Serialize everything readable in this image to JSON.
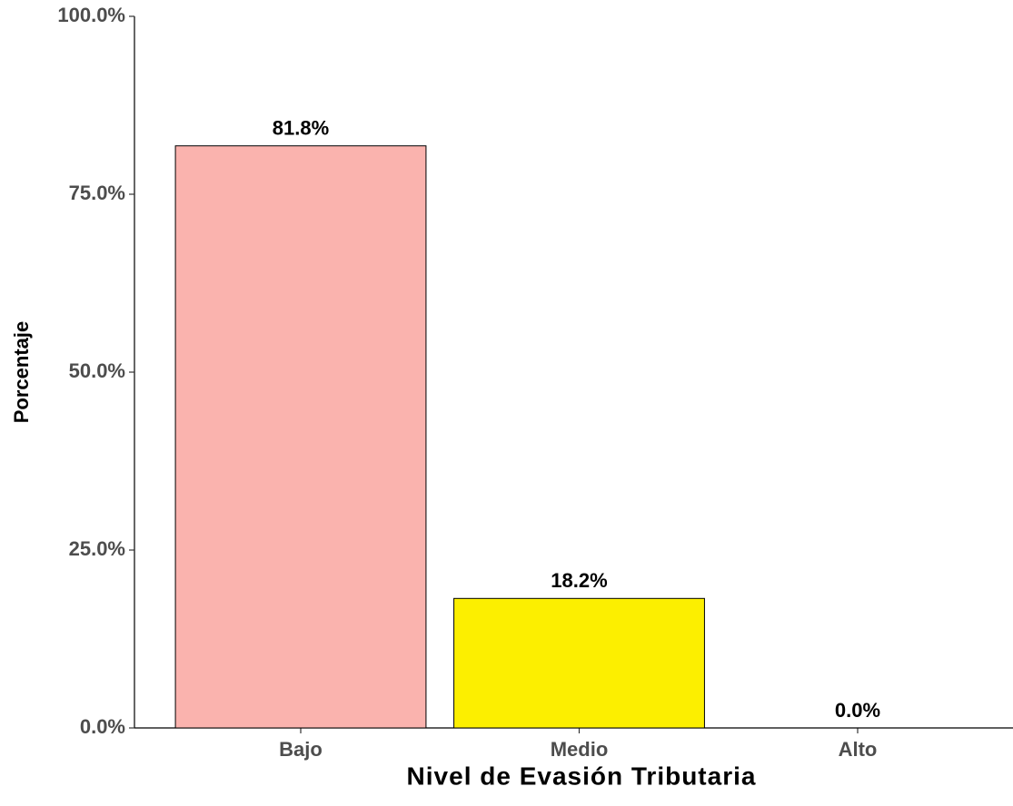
{
  "chart_data": {
    "type": "bar",
    "x_label": "Nivel de Evasión Tributaria",
    "y_label": "Porcentaje",
    "categories": [
      "Bajo",
      "Medio",
      "Alto"
    ],
    "values": [
      81.8,
      18.2,
      0.0
    ],
    "value_labels": [
      "81.8%",
      "18.2%",
      "0.0%"
    ],
    "colors": [
      "#fab3ae",
      "#fcef00",
      "#c8e6c9"
    ],
    "ylim": [
      0,
      100
    ],
    "yticks": [
      {
        "value": 0,
        "label": "0.0%"
      },
      {
        "value": 25,
        "label": "25.0%"
      },
      {
        "value": 50,
        "label": "50.0%"
      },
      {
        "value": 75,
        "label": "75.0%"
      },
      {
        "value": 100,
        "label": "100.0%"
      }
    ]
  }
}
